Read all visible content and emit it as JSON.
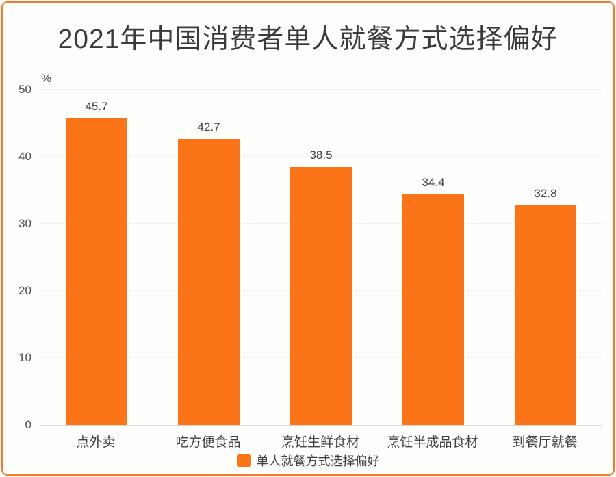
{
  "chart_data": {
    "type": "bar",
    "title": "2021年中国消费者单人就餐方式选择偏好",
    "unit_label": "%",
    "categories": [
      "点外卖",
      "吃方便食品",
      "烹饪生鲜食材",
      "烹饪半成品食材",
      "到餐厅就餐"
    ],
    "values": [
      45.7,
      42.7,
      38.5,
      34.4,
      32.8
    ],
    "legend": [
      "单人就餐方式选择偏好"
    ],
    "ylim": [
      0,
      50
    ],
    "yticks": [
      0,
      10,
      20,
      30,
      40,
      50
    ],
    "grid": "horizontal",
    "legend_position": "bottom",
    "bar_color": "#fb7418"
  },
  "colors": {
    "accent": "#fb7418",
    "border": "#ee7c2b",
    "title_text": "#3a3a3a",
    "label_text": "#404040",
    "axis_line": "#d9d9d5",
    "grid_line": "#f2f1ed"
  }
}
